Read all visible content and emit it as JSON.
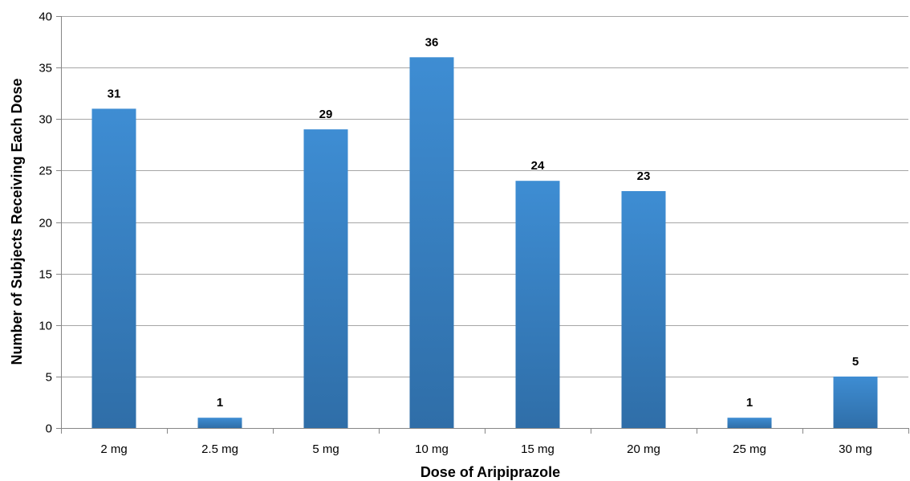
{
  "chart_data": {
    "type": "bar",
    "title": "",
    "xlabel": "Dose of Aripiprazole",
    "ylabel": "Number of Subjects Receiving Each Dose",
    "categories": [
      "2 mg",
      "2.5 mg",
      "5 mg",
      "10 mg",
      "15 mg",
      "20 mg",
      "25 mg",
      "30 mg"
    ],
    "values": [
      31,
      1,
      29,
      36,
      24,
      23,
      1,
      5
    ],
    "ylim": [
      0,
      40
    ],
    "yticks": [
      0,
      5,
      10,
      15,
      20,
      25,
      30,
      35,
      40
    ],
    "grid": true,
    "legend": "none",
    "data_labels": true,
    "colors": {
      "bar_top": "#3E8DD3",
      "bar_bottom": "#2F6EA8",
      "grid": "#A6A6A6",
      "axis": "#868686"
    }
  }
}
